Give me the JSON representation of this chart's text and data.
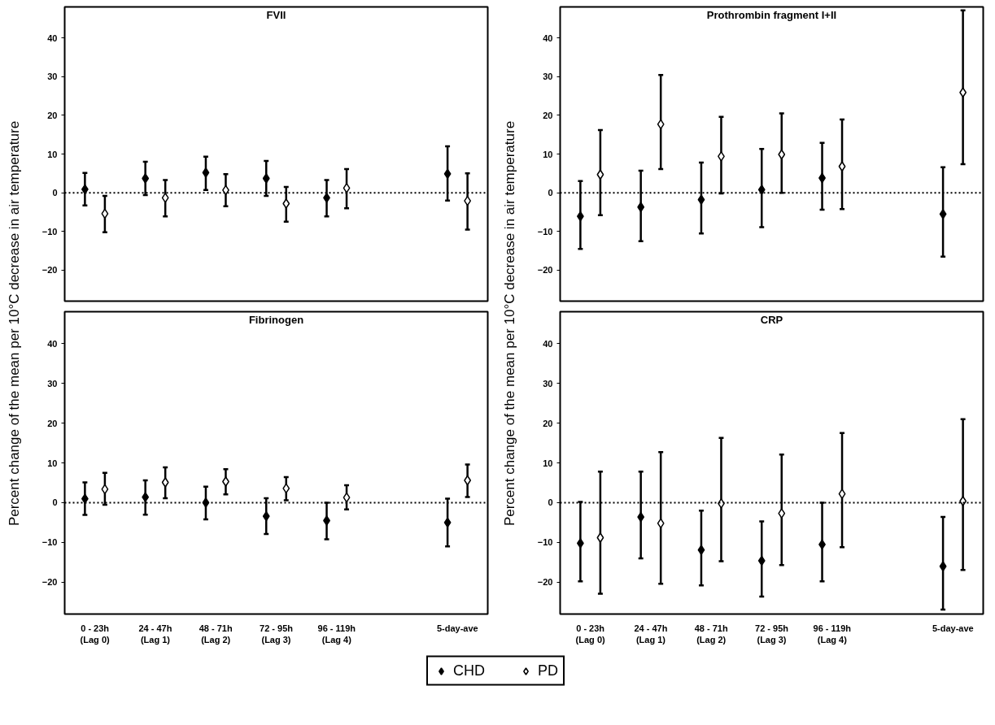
{
  "chart_data": [
    {
      "type": "scatter",
      "title": "FVII",
      "ylabel": "Percent change of the mean per 10°C decrease in air temperature",
      "categories": [
        null,
        null,
        null,
        null,
        null,
        null,
        null
      ],
      "ylim": [
        -28,
        48
      ],
      "yticks": [
        -20,
        -10,
        0,
        10,
        20,
        30,
        40
      ],
      "grid": false,
      "tick_labels": "y",
      "marker": "diamond",
      "legend": "bottom",
      "ref_lines": [
        {
          "axis": "y",
          "value": 0,
          "label": null,
          "color": "#000000",
          "line_style": "dotted"
        }
      ],
      "series": [
        {
          "name": "CHD",
          "color": "#000000",
          "values": [
            0.9,
            3.7,
            5.2,
            3.7,
            -1.3,
            null,
            4.9
          ],
          "errors": [
            [
              -3.3,
              5.1
            ],
            [
              -0.6,
              8.0
            ],
            [
              0.7,
              9.3
            ],
            [
              -0.8,
              8.2
            ],
            [
              -6.1,
              3.3
            ],
            null,
            [
              -2.0,
              12.0
            ]
          ]
        },
        {
          "name": "PD",
          "color": "#ffffff",
          "values": [
            -5.4,
            -1.3,
            0.7,
            -2.8,
            1.2,
            null,
            -2.1
          ],
          "errors": [
            [
              -10.2,
              -0.8
            ],
            [
              -6.1,
              3.3
            ],
            [
              -3.5,
              4.8
            ],
            [
              -7.5,
              1.5
            ],
            [
              -4.0,
              6.1
            ],
            null,
            [
              -9.5,
              5.0
            ]
          ]
        }
      ]
    },
    {
      "type": "scatter",
      "title": "Prothrombin fragment I+II",
      "ylabel": "Percent change of the mean per 10°C decrease in air temperature",
      "categories": [
        null,
        null,
        null,
        null,
        null,
        null,
        null
      ],
      "ylim": [
        -28,
        48
      ],
      "yticks": [
        -20,
        -10,
        0,
        10,
        20,
        30,
        40
      ],
      "grid": false,
      "tick_labels": "y",
      "marker": "diamond",
      "ref_lines": [
        {
          "axis": "y",
          "value": 0,
          "label": null,
          "color": "#000000",
          "line_style": "dotted"
        }
      ],
      "series": [
        {
          "color": "#000000",
          "values": [
            -6.1,
            -3.7,
            -1.8,
            0.8,
            3.8,
            null,
            -5.5
          ],
          "errors": [
            [
              -14.5,
              3.0
            ],
            [
              -12.5,
              5.7
            ],
            [
              -10.5,
              7.8
            ],
            [
              -8.9,
              11.3
            ],
            [
              -4.4,
              12.9
            ],
            null,
            [
              -16.5,
              6.6
            ]
          ]
        },
        {
          "color": "#ffffff",
          "values": [
            4.7,
            17.7,
            9.4,
            9.9,
            6.8,
            null,
            25.9
          ],
          "errors": [
            [
              -5.8,
              16.2
            ],
            [
              6.1,
              30.4
            ],
            [
              -0.2,
              19.6
            ],
            [
              0.0,
              20.5
            ],
            [
              -4.2,
              18.9
            ],
            null,
            [
              7.4,
              47.1
            ]
          ]
        }
      ]
    },
    {
      "type": "scatter",
      "title": "Fibrinogen",
      "categories": [
        "0 - 23h\n(Lag 0)",
        "24 - 47h\n(Lag 1)",
        "48 - 71h\n(Lag 2)",
        "72 - 95h\n(Lag 3)",
        "96 - 119h\n(Lag 4)",
        null,
        "5-day-ave"
      ],
      "ylim": [
        -28,
        48
      ],
      "yticks": [
        -20,
        -10,
        0,
        10,
        20,
        30,
        40
      ],
      "grid": false,
      "marker": "diamond",
      "ref_lines": [
        {
          "axis": "y",
          "value": 0,
          "label": null,
          "color": "#000000",
          "line_style": "dotted"
        }
      ],
      "series": [
        {
          "color": "#000000",
          "values": [
            1.0,
            1.4,
            0.0,
            -3.4,
            -4.5,
            null,
            -5.0
          ],
          "errors": [
            [
              -3.1,
              5.1
            ],
            [
              -3.0,
              5.6
            ],
            [
              -4.2,
              4.0
            ],
            [
              -7.9,
              1.1
            ],
            [
              -9.2,
              0.0
            ],
            null,
            [
              -11.0,
              1.0
            ]
          ]
        },
        {
          "color": "#ffffff",
          "values": [
            3.4,
            5.1,
            5.3,
            3.6,
            1.3,
            null,
            5.6
          ],
          "errors": [
            [
              -0.5,
              7.5
            ],
            [
              1.1,
              8.9
            ],
            [
              2.1,
              8.4
            ],
            [
              0.6,
              6.4
            ],
            [
              -1.7,
              4.4
            ],
            null,
            [
              1.4,
              9.6
            ]
          ]
        }
      ]
    },
    {
      "type": "scatter",
      "title": "CRP",
      "categories": [
        "0 - 23h\n(Lag 0)",
        "24 - 47h\n(Lag 1)",
        "48 - 71h\n(Lag 2)",
        "72 - 95h\n(Lag 3)",
        "96 - 119h\n(Lag 4)",
        null,
        "5-day-ave"
      ],
      "ylim": [
        -28,
        48
      ],
      "yticks": [
        -20,
        -10,
        0,
        10,
        20,
        30,
        40
      ],
      "grid": false,
      "marker": "diamond",
      "ref_lines": [
        {
          "axis": "y",
          "value": 0,
          "label": null,
          "color": "#000000",
          "line_style": "dotted"
        }
      ],
      "series": [
        {
          "color": "#000000",
          "values": [
            -10.2,
            -3.6,
            -11.9,
            -14.6,
            -10.5,
            null,
            -16.0
          ],
          "errors": [
            [
              -19.8,
              0.2
            ],
            [
              -14.0,
              7.8
            ],
            [
              -20.8,
              -2.0
            ],
            [
              -23.6,
              -4.7
            ],
            [
              -19.8,
              0.0
            ],
            null,
            [
              -26.9,
              -3.6
            ]
          ]
        },
        {
          "color": "#ffffff",
          "values": [
            -8.8,
            -5.2,
            -0.2,
            -2.7,
            2.2,
            null,
            0.4
          ],
          "errors": [
            [
              -22.9,
              7.8
            ],
            [
              -20.4,
              12.7
            ],
            [
              -14.7,
              16.3
            ],
            [
              -15.7,
              12.1
            ],
            [
              -11.2,
              17.5
            ],
            null,
            [
              -16.9,
              21.0
            ]
          ]
        }
      ]
    }
  ]
}
